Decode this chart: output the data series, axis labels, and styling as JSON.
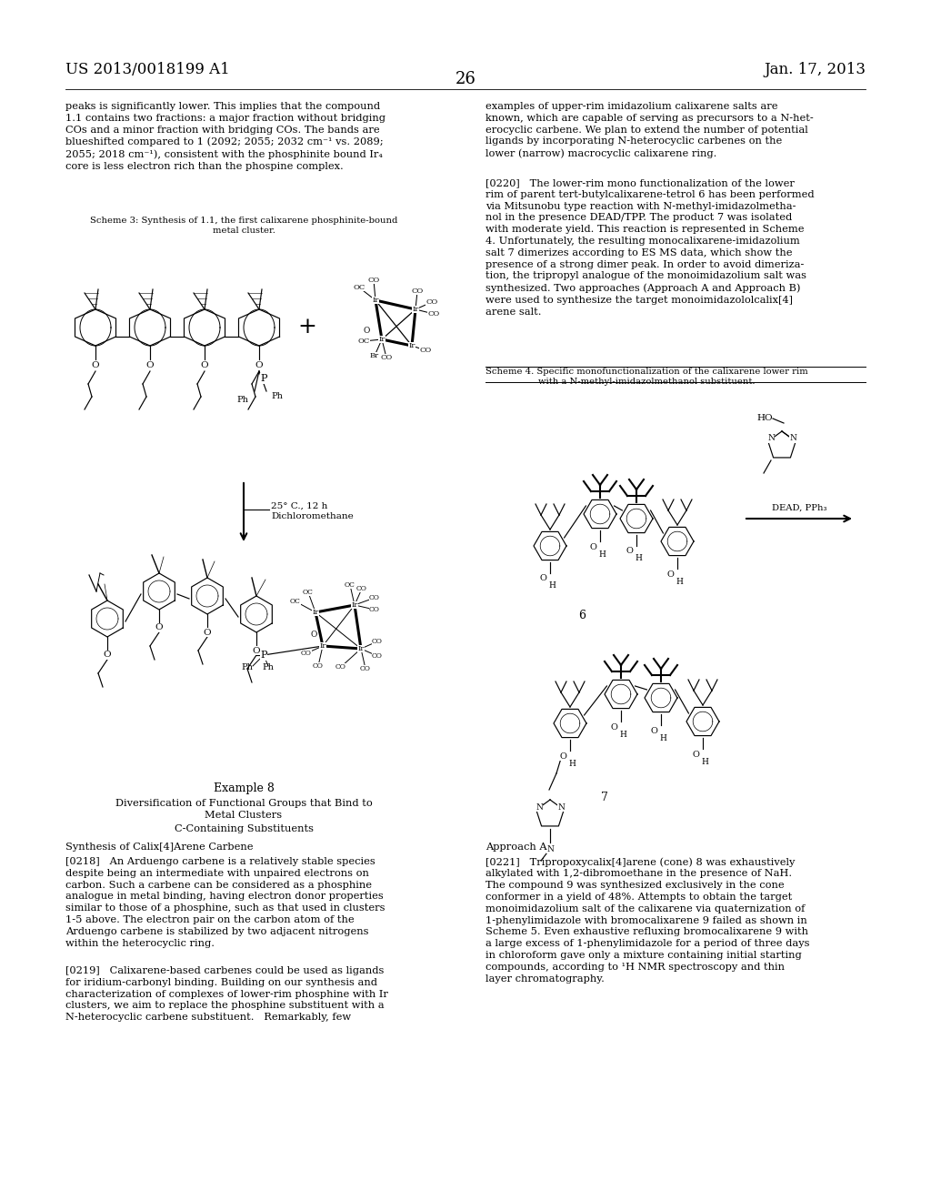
{
  "background_color": "#ffffff",
  "header_left": "US 2013/0018199 A1",
  "header_right": "Jan. 17, 2013",
  "page_number": "26",
  "font_size_header": 12,
  "font_size_body": 8.2,
  "font_size_small": 7.2,
  "font_size_page_num": 13,
  "left_body1": "peaks is significantly lower. This implies that the compound\n1.1 contains two fractions: a major fraction without bridging\nCOs and a minor fraction with bridging COs. The bands are\nblueshifted compared to 1 (2092; 2055; 2032 cm⁻¹ vs. 2089;\n2055; 2018 cm⁻¹), consistent with the phosphinite bound Ir₄\ncore is less electron rich than the phospine complex.",
  "scheme3_caption": "Scheme 3: Synthesis of 1.1, the first calixarene phosphinite-bound\nmetal cluster.",
  "right_body1": "examples of upper-rim imidazolium calixarene salts are\nknown, which are capable of serving as precursors to a N-het-\nerocyclic carbene. We plan to extend the number of potential\nligands by incorporating N-heterocyclic carbenes on the\nlower (narrow) macrocyclic calixarene ring.",
  "right_body2": "[0220]   The lower-rim mono functionalization of the lower\nrim of parent tert-butylcalixarene-tetrol 6 has been performed\nvia Mitsunobu type reaction with N-methyl-imidazolmetha-\nnol in the presence DEAD/TPP. The product 7 was isolated\nwith moderate yield. This reaction is represented in Scheme\n4. Unfortunately, the resulting monocalixarene-imidazolium\nsalt 7 dimerizes according to ES MS data, which show the\npresence of a strong dimer peak. In order to avoid dimeriza-\ntion, the tripropyl analogue of the monoimidazolium salt was\nsynthesized. Two approaches (Approach A and Approach B)\nwere used to synthesize the target monoimidazololcalix[4]\narene salt.",
  "scheme4_caption": "Scheme 4. Specific monofunctionalization of the calixarene lower rim\nwith a N-methyl-imidazolmethanol substituent.",
  "example8_title": "Example 8",
  "example8_sub1": "Diversification of Functional Groups that Bind to\nMetal Clusters",
  "example8_sub2": "C-Containing Substituents",
  "synth_title": "Synthesis of Calix[4]Arene Carbene",
  "body0218": "[0218]   An Arduengo carbene is a relatively stable species\ndespite being an intermediate with unpaired electrons on\ncarbon. Such a carbene can be considered as a phosphine\nanalogue in metal binding, having electron donor properties\nsimilar to those of a phosphine, such as that used in clusters\n1-5 above. The electron pair on the carbon atom of the\nArduengo carbene is stabilized by two adjacent nitrogens\nwithin the heterocyclic ring.",
  "body0219": "[0219]   Calixarene-based carbenes could be used as ligands\nfor iridium-carbonyl binding. Building on our synthesis and\ncharacterization of complexes of lower-rim phosphine with Ir\nclusters, we aim to replace the phosphine substituent with a\nN-heterocyclic carbene substituent.   Remarkably, few",
  "approach_a": "Approach A",
  "body0221": "[0221]   Tripropoxycalix[4]arene (cone) 8 was exhaustively\nalkylated with 1,2-dibromoethane in the presence of NaH.\nThe compound 9 was synthesized exclusively in the cone\nconformer in a yield of 48%. Attempts to obtain the target\nmonoimidazolium salt of the calixarene via quaternization of\n1-phenylimidazole with bromocalixarene 9 failed as shown in\nScheme 5. Even exhaustive refluxing bromocalixarene 9 with\na large excess of 1-phenylimidazole for a period of three days\nin chloroform gave only a mixture containing initial starting\ncompounds, according to ¹H NMR spectroscopy and thin\nlayer chromatography.",
  "rxn_conditions": "25° C., 12 h\nDichloromethane",
  "dead_pph3": "DEAD, PPh₃"
}
